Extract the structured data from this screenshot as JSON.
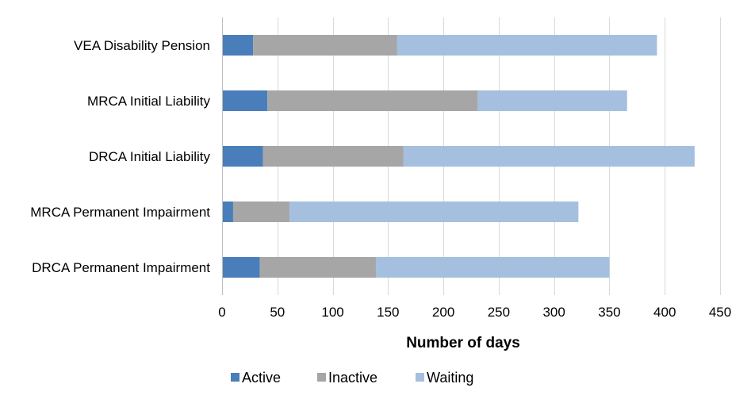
{
  "chart_data": {
    "type": "bar",
    "orientation": "horizontal",
    "stacked": true,
    "title": "",
    "xlabel": "Number of days",
    "ylabel": "",
    "xlim": [
      0,
      450
    ],
    "xticks": [
      0,
      50,
      100,
      150,
      200,
      250,
      300,
      350,
      400,
      450
    ],
    "grid": true,
    "legend_position": "bottom",
    "categories": [
      "VEA Disability Pension",
      "MRCA Initial Liability",
      "DRCA Initial Liability",
      "MRCA Permanent Impairment",
      "DRCA Permanent Impairment"
    ],
    "series": [
      {
        "name": "Active",
        "color": "#4a7ebb",
        "values": [
          28,
          41,
          37,
          10,
          34
        ]
      },
      {
        "name": "Inactive",
        "color": "#a6a6a6",
        "values": [
          130,
          190,
          127,
          51,
          105
        ]
      },
      {
        "name": "Waiting",
        "color": "#a5bfdf",
        "values": [
          235,
          135,
          263,
          261,
          211
        ]
      }
    ]
  }
}
